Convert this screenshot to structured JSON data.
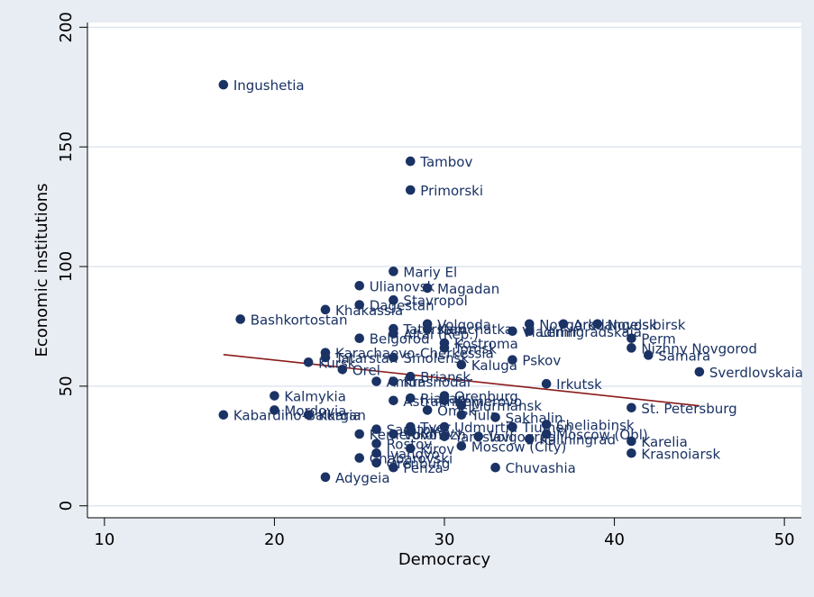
{
  "chart_data": {
    "type": "scatter",
    "title": "",
    "xlabel": "Democracy",
    "ylabel": "Economic institutions",
    "xlim": [
      9,
      51
    ],
    "ylim": [
      -5,
      202
    ],
    "xticks": [
      10,
      20,
      30,
      40,
      50
    ],
    "yticks": [
      0,
      50,
      100,
      150,
      200
    ],
    "grid": "horizontal",
    "colors": {
      "background": "#e8ecf3",
      "plot": "#ffffff",
      "marker": "#1a3264",
      "fit_line": "#8b1a1a",
      "grid": "#dfe5ef"
    },
    "points": [
      {
        "label": "Ingushetia",
        "x": 17,
        "y": 176
      },
      {
        "label": "Tambov",
        "x": 28,
        "y": 144
      },
      {
        "label": "Primorski",
        "x": 28,
        "y": 132
      },
      {
        "label": "Mariy El",
        "x": 27,
        "y": 98
      },
      {
        "label": "Ulianovsk",
        "x": 25,
        "y": 92
      },
      {
        "label": "Magadan",
        "x": 29,
        "y": 91
      },
      {
        "label": "Stavropol",
        "x": 27,
        "y": 86
      },
      {
        "label": "Dagestan",
        "x": 25,
        "y": 84
      },
      {
        "label": "Khakassia",
        "x": 23,
        "y": 82
      },
      {
        "label": "Bashkortostan",
        "x": 18,
        "y": 78
      },
      {
        "label": "Volgoda",
        "x": 29,
        "y": 76
      },
      {
        "label": "Novgorod",
        "x": 35,
        "y": 76
      },
      {
        "label": "Arkhangelsk",
        "x": 37,
        "y": 76
      },
      {
        "label": "Novosibirsk",
        "x": 39,
        "y": 76
      },
      {
        "label": "Tatarstan",
        "x": 27,
        "y": 74
      },
      {
        "label": "Kamchatka",
        "x": 29,
        "y": 74
      },
      {
        "label": "Vladimir",
        "x": 34,
        "y": 73
      },
      {
        "label": "Leningradskaia",
        "x": 35,
        "y": 73
      },
      {
        "label": "Altai (Rep.)",
        "x": 27,
        "y": 72
      },
      {
        "label": "Belgorod",
        "x": 25,
        "y": 70
      },
      {
        "label": "Perm",
        "x": 41,
        "y": 70
      },
      {
        "label": "Kostroma",
        "x": 30,
        "y": 68
      },
      {
        "label": "Tomsk",
        "x": 30,
        "y": 66
      },
      {
        "label": "Nizhny Novgorod",
        "x": 41,
        "y": 66
      },
      {
        "label": "Karachaevo-Cherkessia",
        "x": 23,
        "y": 64
      },
      {
        "label": "Samara",
        "x": 42,
        "y": 63
      },
      {
        "label": "Tatarstan",
        "x": 23,
        "y": 62
      },
      {
        "label": "Smolensk",
        "x": 27,
        "y": 62
      },
      {
        "label": "Pskov",
        "x": 34,
        "y": 61
      },
      {
        "label": "Kursk",
        "x": 22,
        "y": 60
      },
      {
        "label": "Kaluga",
        "x": 31,
        "y": 59
      },
      {
        "label": "Orel",
        "x": 24,
        "y": 57
      },
      {
        "label": "Sverdlovskaia",
        "x": 45,
        "y": 56
      },
      {
        "label": "Briansk",
        "x": 28,
        "y": 54
      },
      {
        "label": "Amur",
        "x": 26,
        "y": 52
      },
      {
        "label": "Krasnodar",
        "x": 27,
        "y": 52
      },
      {
        "label": "Irkutsk",
        "x": 36,
        "y": 51
      },
      {
        "label": "Kalmykia",
        "x": 20,
        "y": 46
      },
      {
        "label": "Orenburg",
        "x": 30,
        "y": 46
      },
      {
        "label": "Riazan",
        "x": 28,
        "y": 45
      },
      {
        "label": "Astrakhan",
        "x": 27,
        "y": 44
      },
      {
        "label": "Kemerovo",
        "x": 30,
        "y": 44
      },
      {
        "label": "Murmansk",
        "x": 31,
        "y": 42
      },
      {
        "label": "St. Petersburg",
        "x": 41,
        "y": 41
      },
      {
        "label": "Mordovia",
        "x": 20,
        "y": 40
      },
      {
        "label": "Omsk",
        "x": 29,
        "y": 40
      },
      {
        "label": "Kabardino-Balkaria",
        "x": 17,
        "y": 38
      },
      {
        "label": "Kurgan",
        "x": 22,
        "y": 38
      },
      {
        "label": "Tula",
        "x": 31,
        "y": 38
      },
      {
        "label": "Sakhalin",
        "x": 33,
        "y": 37
      },
      {
        "label": "Cheliabinsk",
        "x": 36,
        "y": 34
      },
      {
        "label": "Tver",
        "x": 28,
        "y": 33
      },
      {
        "label": "Udmurtia",
        "x": 30,
        "y": 33
      },
      {
        "label": "Tiumen",
        "x": 34,
        "y": 33
      },
      {
        "label": "Saratov",
        "x": 26,
        "y": 32
      },
      {
        "label": "Kirov",
        "x": 28,
        "y": 31
      },
      {
        "label": "Moscow (Obl)",
        "x": 36,
        "y": 30
      },
      {
        "label": "Kemerovo",
        "x": 25,
        "y": 30
      },
      {
        "label": "Voronezh",
        "x": 27,
        "y": 30
      },
      {
        "label": "Yaroslavl",
        "x": 30,
        "y": 29
      },
      {
        "label": "Volgograd",
        "x": 32,
        "y": 29
      },
      {
        "label": "Kaliningrad",
        "x": 35,
        "y": 28
      },
      {
        "label": "Karelia",
        "x": 41,
        "y": 27
      },
      {
        "label": "Rostov",
        "x": 26,
        "y": 26
      },
      {
        "label": "Moscow (City)",
        "x": 31,
        "y": 25
      },
      {
        "label": "Kirov",
        "x": 28,
        "y": 24
      },
      {
        "label": "Krasnoiarsk",
        "x": 41,
        "y": 22
      },
      {
        "label": "Ivanovo",
        "x": 26,
        "y": 22
      },
      {
        "label": "Chabarovski",
        "x": 25,
        "y": 20
      },
      {
        "label": "Orenburg",
        "x": 26,
        "y": 18
      },
      {
        "label": "Penza",
        "x": 27,
        "y": 16
      },
      {
        "label": "Chuvashia",
        "x": 33,
        "y": 16
      },
      {
        "label": "Adygeia",
        "x": 23,
        "y": 12
      }
    ],
    "fit_line": {
      "x": [
        17,
        45
      ],
      "y": [
        63.2,
        41.8
      ]
    }
  }
}
